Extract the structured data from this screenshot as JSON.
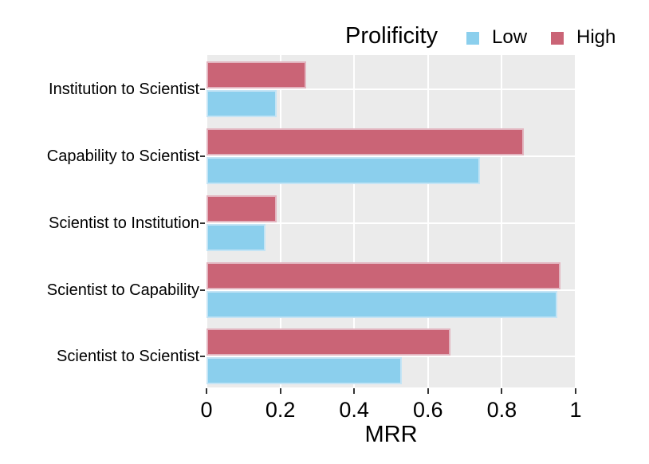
{
  "chart_data": {
    "type": "bar",
    "orientation": "horizontal",
    "xlabel": "MRR",
    "ylabel": "",
    "xlim": [
      0,
      1
    ],
    "xticks": [
      0,
      0.2,
      0.4,
      0.6,
      0.8,
      1
    ],
    "xtick_labels": [
      "0",
      "0.2",
      "0.4",
      "0.6",
      "0.8",
      "1"
    ],
    "categories": [
      "Institution to Scientist",
      "Capability to Scientist",
      "Scientist to Institution",
      "Scientist to Capability",
      "Scientist to Scientist"
    ],
    "legend": {
      "title": "Prolificity",
      "position": "top-right"
    },
    "series": [
      {
        "name": "Low",
        "color": "#8BCFED",
        "edge_color": "#C4E4F5",
        "values": [
          0.19,
          0.74,
          0.16,
          0.95,
          0.53
        ]
      },
      {
        "name": "High",
        "color": "#CA6476",
        "edge_color": "#E2B4BF",
        "values": [
          0.27,
          0.86,
          0.19,
          0.96,
          0.66
        ]
      }
    ],
    "panel_background": "#EBEBEB",
    "grid": true,
    "grid_color": "#FFFFFF"
  }
}
